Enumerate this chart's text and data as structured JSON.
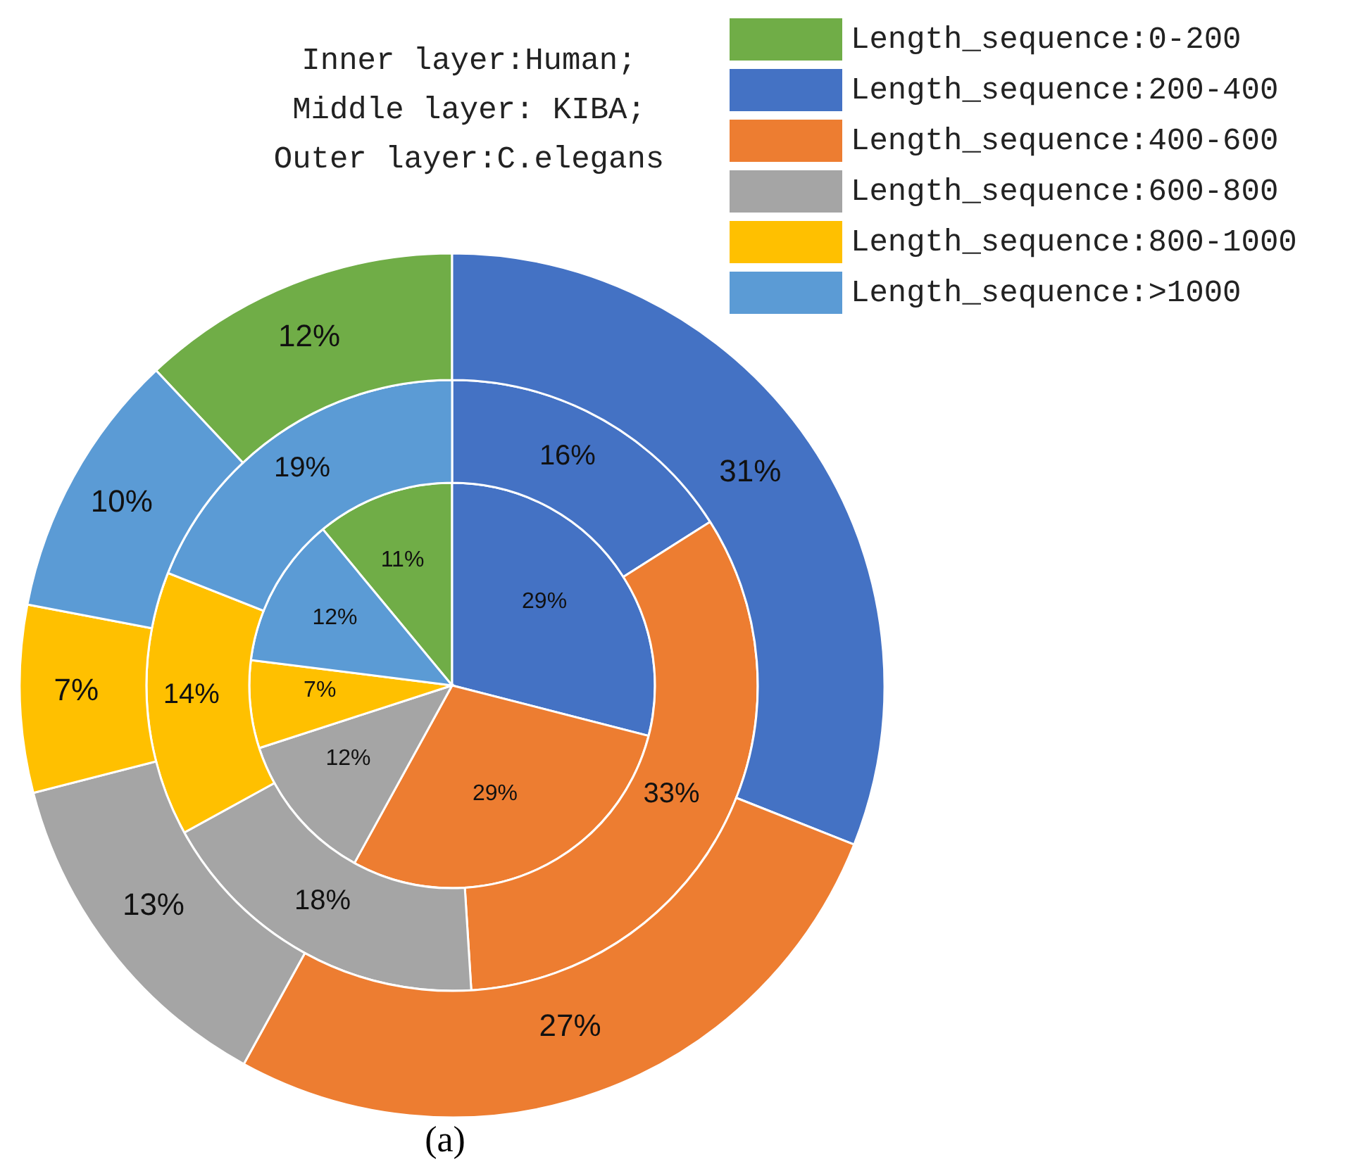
{
  "chart_data": {
    "type": "pie",
    "title": "Inner layer:Human;\n Middle layer: KIBA;\nOuter layer:C.elegans",
    "categories": [
      "Length_sequence:0-200",
      "Length_sequence:200-400",
      "Length_sequence:400-600",
      "Length_sequence:600-800",
      "Length_sequence:800-1000",
      "Length_sequence:>1000"
    ],
    "colors": [
      "#70ad47",
      "#4472c4",
      "#ed7d31",
      "#a5a5a5",
      "#ffc000",
      "#5b9bd5"
    ],
    "series": [
      {
        "values": [
          11,
          29,
          29,
          12,
          7,
          12
        ],
        "value_labels": [
          "11%",
          "29%",
          "29%",
          "12%",
          "7%",
          "12%"
        ]
      },
      {
        "values": [
          0,
          16,
          33,
          18,
          14,
          19
        ],
        "value_labels": [
          null,
          "16%",
          "33%",
          "18%",
          "14%",
          "19%"
        ]
      },
      {
        "values": [
          12,
          31,
          27,
          13,
          7,
          10
        ],
        "value_labels": [
          "12%",
          "31%",
          "27%",
          "13%",
          "7%",
          "10%"
        ]
      }
    ],
    "legend": "top right",
    "annotations": [
      "(a)"
    ]
  }
}
